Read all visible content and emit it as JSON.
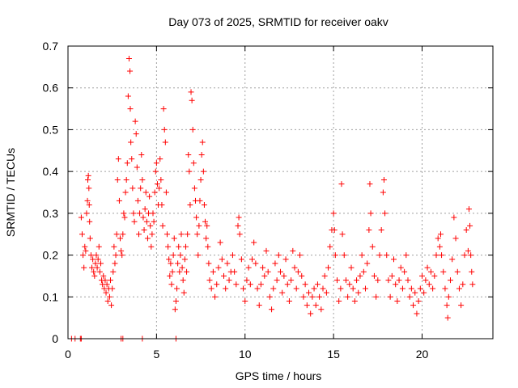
{
  "chart_data": {
    "type": "scatter",
    "title": "Day 073 of 2025, SRMTID for receiver oakv",
    "xlabel": "GPS time / hours",
    "ylabel": "SRMTID / TECUs",
    "xlim": [
      0,
      24
    ],
    "ylim": [
      0,
      0.7
    ],
    "xticks": [
      0,
      5,
      10,
      15,
      20
    ],
    "xtick_labels": [
      "0",
      "5",
      "10",
      "15",
      "20"
    ],
    "yticks": [
      0,
      0.1,
      0.2,
      0.3,
      0.4,
      0.5,
      0.6,
      0.7
    ],
    "ytick_labels": [
      "0",
      "0.1",
      "0.2",
      "0.3",
      "0.4",
      "0.5",
      "0.6",
      "0.7"
    ],
    "grid": true,
    "marker": "+",
    "color": "#ff0000",
    "series": [
      {
        "name": "SRMTID",
        "points": [
          [
            0.2,
            0.0
          ],
          [
            0.4,
            0.0
          ],
          [
            0.7,
            0.0
          ],
          [
            0.75,
            0.0
          ],
          [
            3.0,
            0.0
          ],
          [
            3.1,
            0.0
          ],
          [
            4.2,
            0.0
          ],
          [
            6.1,
            0.0
          ],
          [
            0.75,
            0.29
          ],
          [
            0.8,
            0.25
          ],
          [
            0.85,
            0.2
          ],
          [
            0.9,
            0.17
          ],
          [
            0.95,
            0.22
          ],
          [
            1.0,
            0.21
          ],
          [
            1.05,
            0.3
          ],
          [
            1.1,
            0.33
          ],
          [
            1.12,
            0.38
          ],
          [
            1.15,
            0.39
          ],
          [
            1.18,
            0.36
          ],
          [
            1.2,
            0.32
          ],
          [
            1.22,
            0.28
          ],
          [
            1.25,
            0.24
          ],
          [
            1.3,
            0.2
          ],
          [
            1.35,
            0.17
          ],
          [
            1.4,
            0.19
          ],
          [
            1.45,
            0.16
          ],
          [
            1.5,
            0.15
          ],
          [
            1.55,
            0.18
          ],
          [
            1.6,
            0.2
          ],
          [
            1.65,
            0.17
          ],
          [
            1.7,
            0.19
          ],
          [
            1.75,
            0.22
          ],
          [
            1.8,
            0.16
          ],
          [
            1.85,
            0.18
          ],
          [
            1.9,
            0.14
          ],
          [
            1.95,
            0.13
          ],
          [
            2.0,
            0.15
          ],
          [
            2.05,
            0.12
          ],
          [
            2.1,
            0.14
          ],
          [
            2.15,
            0.11
          ],
          [
            2.2,
            0.13
          ],
          [
            2.25,
            0.09
          ],
          [
            2.3,
            0.12
          ],
          [
            2.35,
            0.1
          ],
          [
            2.4,
            0.14
          ],
          [
            2.45,
            0.08
          ],
          [
            2.5,
            0.12
          ],
          [
            2.55,
            0.16
          ],
          [
            2.6,
            0.22
          ],
          [
            2.65,
            0.18
          ],
          [
            2.7,
            0.2
          ],
          [
            2.75,
            0.25
          ],
          [
            2.8,
            0.38
          ],
          [
            2.85,
            0.43
          ],
          [
            2.9,
            0.33
          ],
          [
            2.95,
            0.24
          ],
          [
            3.0,
            0.21
          ],
          [
            3.05,
            0.2
          ],
          [
            3.1,
            0.25
          ],
          [
            3.15,
            0.3
          ],
          [
            3.2,
            0.29
          ],
          [
            3.25,
            0.35
          ],
          [
            3.3,
            0.38
          ],
          [
            3.35,
            0.42
          ],
          [
            3.4,
            0.58
          ],
          [
            3.45,
            0.67
          ],
          [
            3.5,
            0.64
          ],
          [
            3.52,
            0.55
          ],
          [
            3.55,
            0.47
          ],
          [
            3.6,
            0.43
          ],
          [
            3.65,
            0.36
          ],
          [
            3.7,
            0.3
          ],
          [
            3.75,
            0.28
          ],
          [
            3.8,
            0.52
          ],
          [
            3.85,
            0.49
          ],
          [
            3.9,
            0.41
          ],
          [
            3.95,
            0.33
          ],
          [
            4.0,
            0.25
          ],
          [
            4.05,
            0.3
          ],
          [
            4.1,
            0.36
          ],
          [
            4.15,
            0.44
          ],
          [
            4.2,
            0.38
          ],
          [
            4.25,
            0.29
          ],
          [
            4.3,
            0.26
          ],
          [
            4.35,
            0.31
          ],
          [
            4.4,
            0.35
          ],
          [
            4.45,
            0.28
          ],
          [
            4.5,
            0.24
          ],
          [
            4.55,
            0.3
          ],
          [
            4.6,
            0.34
          ],
          [
            4.65,
            0.27
          ],
          [
            4.7,
            0.22
          ],
          [
            4.75,
            0.25
          ],
          [
            4.8,
            0.3
          ],
          [
            4.85,
            0.28
          ],
          [
            4.9,
            0.35
          ],
          [
            4.95,
            0.4
          ],
          [
            5.0,
            0.42
          ],
          [
            5.05,
            0.37
          ],
          [
            5.1,
            0.32
          ],
          [
            5.15,
            0.36
          ],
          [
            5.2,
            0.43
          ],
          [
            5.25,
            0.38
          ],
          [
            5.3,
            0.32
          ],
          [
            5.35,
            0.27
          ],
          [
            5.4,
            0.55
          ],
          [
            5.45,
            0.5
          ],
          [
            5.5,
            0.47
          ],
          [
            5.55,
            0.35
          ],
          [
            5.6,
            0.25
          ],
          [
            5.65,
            0.22
          ],
          [
            5.7,
            0.19
          ],
          [
            5.75,
            0.15
          ],
          [
            5.8,
            0.18
          ],
          [
            5.85,
            0.13
          ],
          [
            5.9,
            0.16
          ],
          [
            5.95,
            0.2
          ],
          [
            6.0,
            0.24
          ],
          [
            6.05,
            0.07
          ],
          [
            6.1,
            0.09
          ],
          [
            6.15,
            0.12
          ],
          [
            6.2,
            0.18
          ],
          [
            6.25,
            0.22
          ],
          [
            6.3,
            0.16
          ],
          [
            6.35,
            0.2
          ],
          [
            6.4,
            0.25
          ],
          [
            6.45,
            0.17
          ],
          [
            6.5,
            0.14
          ],
          [
            6.55,
            0.11
          ],
          [
            6.6,
            0.19
          ],
          [
            6.65,
            0.22
          ],
          [
            6.7,
            0.16
          ],
          [
            6.75,
            0.25
          ],
          [
            6.8,
            0.44
          ],
          [
            6.85,
            0.4
          ],
          [
            6.9,
            0.32
          ],
          [
            6.95,
            0.59
          ],
          [
            7.0,
            0.57
          ],
          [
            7.05,
            0.5
          ],
          [
            7.1,
            0.42
          ],
          [
            7.15,
            0.36
          ],
          [
            7.2,
            0.33
          ],
          [
            7.25,
            0.29
          ],
          [
            7.3,
            0.25
          ],
          [
            7.35,
            0.2
          ],
          [
            7.4,
            0.27
          ],
          [
            7.45,
            0.33
          ],
          [
            7.5,
            0.38
          ],
          [
            7.55,
            0.44
          ],
          [
            7.6,
            0.47
          ],
          [
            7.65,
            0.4
          ],
          [
            7.7,
            0.32
          ],
          [
            7.75,
            0.28
          ],
          [
            7.8,
            0.24
          ],
          [
            7.85,
            0.27
          ],
          [
            7.9,
            0.22
          ],
          [
            7.95,
            0.18
          ],
          [
            8.0,
            0.14
          ],
          [
            8.1,
            0.12
          ],
          [
            8.2,
            0.16
          ],
          [
            8.3,
            0.1
          ],
          [
            8.4,
            0.13
          ],
          [
            8.5,
            0.17
          ],
          [
            8.6,
            0.23
          ],
          [
            8.7,
            0.19
          ],
          [
            8.8,
            0.15
          ],
          [
            8.9,
            0.12
          ],
          [
            9.0,
            0.18
          ],
          [
            9.1,
            0.14
          ],
          [
            9.2,
            0.16
          ],
          [
            9.3,
            0.2
          ],
          [
            9.4,
            0.16
          ],
          [
            9.5,
            0.13
          ],
          [
            9.6,
            0.27
          ],
          [
            9.65,
            0.29
          ],
          [
            9.7,
            0.25
          ],
          [
            9.8,
            0.19
          ],
          [
            9.9,
            0.12
          ],
          [
            10.0,
            0.09
          ],
          [
            10.1,
            0.14
          ],
          [
            10.2,
            0.17
          ],
          [
            10.3,
            0.13
          ],
          [
            10.4,
            0.19
          ],
          [
            10.5,
            0.23
          ],
          [
            10.6,
            0.18
          ],
          [
            10.7,
            0.12
          ],
          [
            10.8,
            0.08
          ],
          [
            10.9,
            0.13
          ],
          [
            11.0,
            0.17
          ],
          [
            11.1,
            0.15
          ],
          [
            11.2,
            0.21
          ],
          [
            11.3,
            0.16
          ],
          [
            11.4,
            0.1
          ],
          [
            11.5,
            0.07
          ],
          [
            11.6,
            0.12
          ],
          [
            11.7,
            0.18
          ],
          [
            11.8,
            0.14
          ],
          [
            11.9,
            0.2
          ],
          [
            12.0,
            0.16
          ],
          [
            12.1,
            0.11
          ],
          [
            12.2,
            0.15
          ],
          [
            12.3,
            0.19
          ],
          [
            12.4,
            0.13
          ],
          [
            12.5,
            0.09
          ],
          [
            12.6,
            0.14
          ],
          [
            12.7,
            0.21
          ],
          [
            12.8,
            0.17
          ],
          [
            12.9,
            0.12
          ],
          [
            13.0,
            0.16
          ],
          [
            13.1,
            0.2
          ],
          [
            13.2,
            0.15
          ],
          [
            13.3,
            0.1
          ],
          [
            13.4,
            0.13
          ],
          [
            13.5,
            0.08
          ],
          [
            13.6,
            0.11
          ],
          [
            13.7,
            0.06
          ],
          [
            13.8,
            0.1
          ],
          [
            13.9,
            0.12
          ],
          [
            14.0,
            0.08
          ],
          [
            14.1,
            0.13
          ],
          [
            14.2,
            0.1
          ],
          [
            14.3,
            0.07
          ],
          [
            14.4,
            0.12
          ],
          [
            14.5,
            0.15
          ],
          [
            14.6,
            0.11
          ],
          [
            14.7,
            0.17
          ],
          [
            14.8,
            0.22
          ],
          [
            14.9,
            0.26
          ],
          [
            15.0,
            0.3
          ],
          [
            15.05,
            0.26
          ],
          [
            15.1,
            0.2
          ],
          [
            15.2,
            0.14
          ],
          [
            15.3,
            0.09
          ],
          [
            15.4,
            0.12
          ],
          [
            15.45,
            0.37
          ],
          [
            15.5,
            0.25
          ],
          [
            15.6,
            0.2
          ],
          [
            15.7,
            0.14
          ],
          [
            15.8,
            0.1
          ],
          [
            15.9,
            0.13
          ],
          [
            16.0,
            0.17
          ],
          [
            16.1,
            0.12
          ],
          [
            16.2,
            0.09
          ],
          [
            16.3,
            0.14
          ],
          [
            16.4,
            0.11
          ],
          [
            16.5,
            0.15
          ],
          [
            16.6,
            0.2
          ],
          [
            16.7,
            0.16
          ],
          [
            16.8,
            0.12
          ],
          [
            16.9,
            0.18
          ],
          [
            17.0,
            0.26
          ],
          [
            17.05,
            0.37
          ],
          [
            17.1,
            0.3
          ],
          [
            17.2,
            0.22
          ],
          [
            17.3,
            0.15
          ],
          [
            17.4,
            0.1
          ],
          [
            17.5,
            0.14
          ],
          [
            17.6,
            0.2
          ],
          [
            17.7,
            0.26
          ],
          [
            17.8,
            0.35
          ],
          [
            17.85,
            0.38
          ],
          [
            17.9,
            0.3
          ],
          [
            18.0,
            0.2
          ],
          [
            18.1,
            0.14
          ],
          [
            18.2,
            0.1
          ],
          [
            18.3,
            0.15
          ],
          [
            18.4,
            0.19
          ],
          [
            18.5,
            0.13
          ],
          [
            18.6,
            0.09
          ],
          [
            18.7,
            0.14
          ],
          [
            18.8,
            0.17
          ],
          [
            18.9,
            0.12
          ],
          [
            19.0,
            0.16
          ],
          [
            19.1,
            0.2
          ],
          [
            19.2,
            0.14
          ],
          [
            19.3,
            0.1
          ],
          [
            19.4,
            0.12
          ],
          [
            19.5,
            0.08
          ],
          [
            19.6,
            0.11
          ],
          [
            19.7,
            0.06
          ],
          [
            19.8,
            0.09
          ],
          [
            19.9,
            0.12
          ],
          [
            20.0,
            0.15
          ],
          [
            20.1,
            0.11
          ],
          [
            20.2,
            0.14
          ],
          [
            20.3,
            0.17
          ],
          [
            20.4,
            0.13
          ],
          [
            20.5,
            0.16
          ],
          [
            20.6,
            0.12
          ],
          [
            20.7,
            0.15
          ],
          [
            20.8,
            0.2
          ],
          [
            20.9,
            0.24
          ],
          [
            21.0,
            0.22
          ],
          [
            21.05,
            0.25
          ],
          [
            21.1,
            0.2
          ],
          [
            21.2,
            0.16
          ],
          [
            21.3,
            0.12
          ],
          [
            21.4,
            0.08
          ],
          [
            21.45,
            0.05
          ],
          [
            21.5,
            0.1
          ],
          [
            21.6,
            0.14
          ],
          [
            21.7,
            0.19
          ],
          [
            21.8,
            0.29
          ],
          [
            21.9,
            0.24
          ],
          [
            22.0,
            0.16
          ],
          [
            22.1,
            0.12
          ],
          [
            22.2,
            0.08
          ],
          [
            22.3,
            0.13
          ],
          [
            22.4,
            0.2
          ],
          [
            22.5,
            0.26
          ],
          [
            22.6,
            0.21
          ],
          [
            22.65,
            0.31
          ],
          [
            22.7,
            0.27
          ],
          [
            22.75,
            0.2
          ],
          [
            22.8,
            0.16
          ],
          [
            22.85,
            0.13
          ]
        ]
      }
    ]
  }
}
